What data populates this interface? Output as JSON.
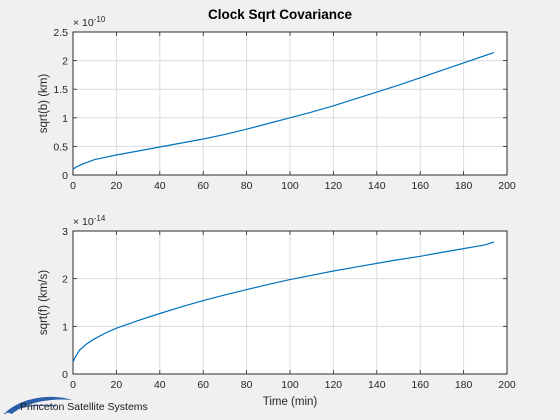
{
  "figure": {
    "title": "Clock Sqrt Covariance",
    "logo_text": "Princeton Satellite Systems"
  },
  "chart_data": [
    {
      "type": "line",
      "title": "Clock Sqrt Covariance",
      "xlabel": "",
      "ylabel": "sqrt(b) (km)",
      "xlim": [
        0,
        200
      ],
      "ylim": [
        0,
        2.5
      ],
      "x_ticks": [
        "0",
        "20",
        "40",
        "60",
        "80",
        "100",
        "120",
        "140",
        "160",
        "180",
        "200"
      ],
      "y_ticks": [
        "0",
        "0.5",
        "1",
        "1.5",
        "2",
        "2.5"
      ],
      "y_exponent_base": "× 10",
      "y_exponent": "-10",
      "grid": true,
      "series": [
        {
          "color": "#0072bd",
          "x": [
            0,
            2,
            5,
            10,
            15,
            20,
            30,
            40,
            50,
            60,
            70,
            80,
            90,
            100,
            110,
            120,
            130,
            140,
            150,
            160,
            170,
            180,
            190,
            194
          ],
          "y": [
            0.1,
            0.15,
            0.2,
            0.27,
            0.31,
            0.35,
            0.42,
            0.49,
            0.56,
            0.63,
            0.71,
            0.8,
            0.9,
            1.0,
            1.1,
            1.21,
            1.33,
            1.45,
            1.57,
            1.7,
            1.83,
            1.96,
            2.09,
            2.14
          ]
        }
      ]
    },
    {
      "type": "line",
      "xlabel": "Time (min)",
      "ylabel": "sqrt(f) (km/s)",
      "xlim": [
        0,
        200
      ],
      "ylim": [
        0,
        3
      ],
      "x_ticks": [
        "0",
        "20",
        "40",
        "60",
        "80",
        "100",
        "120",
        "140",
        "160",
        "180",
        "200"
      ],
      "y_ticks": [
        "0",
        "1",
        "2",
        "3"
      ],
      "y_exponent_base": "× 10",
      "y_exponent": "-14",
      "grid": true,
      "series": [
        {
          "color": "#0072bd",
          "x": [
            0,
            1,
            3,
            6,
            10,
            15,
            20,
            30,
            40,
            50,
            60,
            70,
            80,
            90,
            100,
            110,
            120,
            130,
            140,
            150,
            160,
            170,
            180,
            190,
            194
          ],
          "y": [
            0.25,
            0.35,
            0.5,
            0.62,
            0.74,
            0.86,
            0.96,
            1.12,
            1.27,
            1.41,
            1.54,
            1.66,
            1.77,
            1.88,
            1.98,
            2.07,
            2.16,
            2.24,
            2.32,
            2.4,
            2.47,
            2.55,
            2.63,
            2.71,
            2.77
          ]
        }
      ]
    }
  ]
}
